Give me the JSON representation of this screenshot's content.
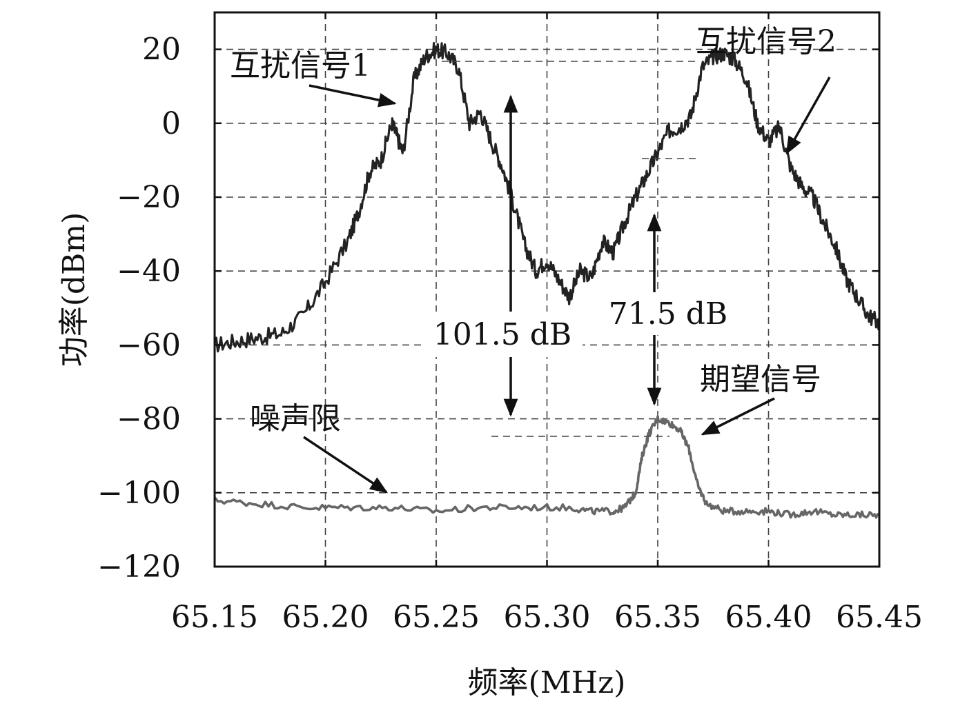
{
  "chart_data": {
    "type": "line",
    "title": "",
    "xlabel": "频率(MHz)",
    "ylabel": "功率(dBm)",
    "xlim": [
      65.15,
      65.45
    ],
    "ylim": [
      -120,
      30
    ],
    "xticks": [
      65.15,
      65.2,
      65.25,
      65.3,
      65.35,
      65.4,
      65.45
    ],
    "xtick_labels": [
      "65.15",
      "65.20",
      "65.25",
      "65.30",
      "65.35",
      "65.40",
      "65.45"
    ],
    "yticks": [
      -120,
      -100,
      -80,
      -60,
      -40,
      -20,
      0,
      20
    ],
    "ytick_labels": [
      "−120",
      "−100",
      "−80",
      "−60",
      "−40",
      "−20",
      "0",
      "20"
    ],
    "grid": true,
    "series": [
      {
        "color": "#222222",
        "x": [
          65.15,
          65.16,
          65.17,
          65.18,
          65.19,
          65.2,
          65.21,
          65.215,
          65.22,
          65.225,
          65.23,
          65.232,
          65.235,
          65.24,
          65.245,
          65.25,
          65.255,
          65.26,
          65.265,
          65.27,
          65.275,
          65.28,
          65.285,
          65.29,
          65.295,
          65.3,
          65.305,
          65.31,
          65.315,
          65.32,
          65.325,
          65.33,
          65.335,
          65.34,
          65.345,
          65.35,
          65.355,
          65.36,
          65.365,
          65.37,
          65.375,
          65.38,
          65.385,
          65.39,
          65.395,
          65.4,
          65.405,
          65.41,
          65.415,
          65.42,
          65.425,
          65.43,
          65.435,
          65.44,
          65.445,
          65.45
        ],
        "y": [
          -60,
          -59,
          -58,
          -57,
          -52,
          -43,
          -32,
          -24,
          -13,
          -10,
          0,
          -3,
          -8,
          12,
          18,
          20,
          19,
          15,
          0,
          3,
          -5,
          -12,
          -22,
          -33,
          -40,
          -37,
          -42,
          -47,
          -40,
          -42,
          -32,
          -35,
          -27,
          -20,
          -14,
          -8,
          -2,
          -1,
          2,
          15,
          18,
          19,
          17,
          12,
          0,
          -5,
          -1,
          -12,
          -17,
          -20,
          -27,
          -33,
          -42,
          -47,
          -52,
          -54
        ]
      },
      {
        "color": "#666666",
        "x": [
          65.15,
          65.17,
          65.19,
          65.21,
          65.23,
          65.25,
          65.27,
          65.29,
          65.31,
          65.32,
          65.33,
          65.335,
          65.34,
          65.343,
          65.346,
          65.35,
          65.355,
          65.36,
          65.364,
          65.368,
          65.372,
          65.38,
          65.39,
          65.4,
          65.41,
          65.42,
          65.43,
          65.44,
          65.45
        ],
        "y": [
          -102,
          -103,
          -104,
          -104,
          -104,
          -105,
          -104,
          -104,
          -104,
          -105,
          -105,
          -104,
          -100,
          -90,
          -84,
          -80,
          -81,
          -83,
          -88,
          -98,
          -103,
          -105,
          -105,
          -105,
          -106,
          -105,
          -106,
          -106,
          -106
        ]
      }
    ],
    "annotations": [
      {
        "text": "互扰信号1"
      },
      {
        "text": "互扰信号2"
      },
      {
        "text": "101.5 dB"
      },
      {
        "text": "71.5 dB"
      },
      {
        "text": "期望信号"
      },
      {
        "text": "噪声限"
      }
    ]
  }
}
